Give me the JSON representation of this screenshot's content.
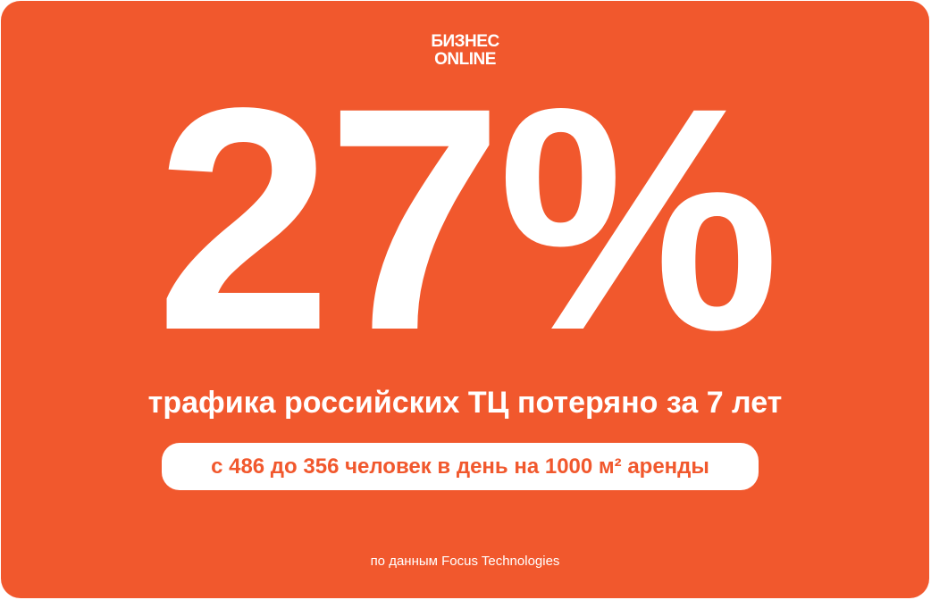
{
  "logo": {
    "line1": "БИЗНЕС",
    "line2": "ONLINE"
  },
  "headline": "27%",
  "subtitle": "трафика российских ТЦ потеряно за 7 лет",
  "detail": "с 486 до 356 человек в день на 1000 м² аренды",
  "source": "по данным Focus Technologies"
}
